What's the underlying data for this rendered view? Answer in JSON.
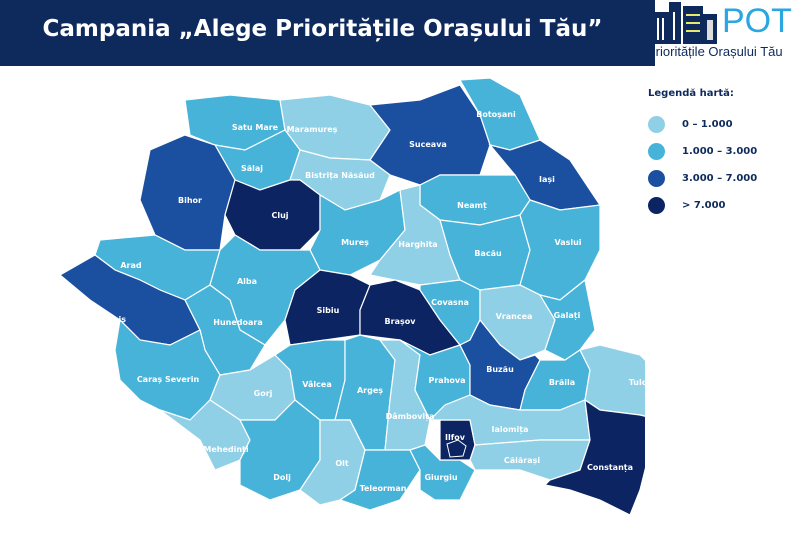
{
  "header": {
    "title": "Campania „Alege Prioritățile Orașului Tău”"
  },
  "logo": {
    "text": "POT",
    "subtitle": "Prioritățile Orașului Tău"
  },
  "legend": {
    "title": "Legendă hartă:",
    "items": [
      {
        "label": "0 – 1.000",
        "color": "#8fd0e6"
      },
      {
        "label": "1.000 – 3.000",
        "color": "#48b3d9"
      },
      {
        "label": "3.000 – 7.000",
        "color": "#1b4f9f"
      },
      {
        "label": "> 7.000",
        "color": "#0c2461"
      }
    ]
  },
  "counties": [
    {
      "name": "Satu Mare",
      "cls": 1
    },
    {
      "name": "Maramureș",
      "cls": 0
    },
    {
      "name": "Botoșani",
      "cls": 1
    },
    {
      "name": "Suceava",
      "cls": 2
    },
    {
      "name": "Sălaj",
      "cls": 1
    },
    {
      "name": "Bistrița Năsăud",
      "cls": 0
    },
    {
      "name": "Iași",
      "cls": 2
    },
    {
      "name": "Bihor",
      "cls": 2
    },
    {
      "name": "Cluj",
      "cls": 3
    },
    {
      "name": "Neamț",
      "cls": 1
    },
    {
      "name": "Mureș",
      "cls": 1
    },
    {
      "name": "Harghita",
      "cls": 0
    },
    {
      "name": "Bacău",
      "cls": 1
    },
    {
      "name": "Vaslui",
      "cls": 1
    },
    {
      "name": "Arad",
      "cls": 1
    },
    {
      "name": "Alba",
      "cls": 1
    },
    {
      "name": "Timiș",
      "cls": 2
    },
    {
      "name": "Hunedoara",
      "cls": 1
    },
    {
      "name": "Sibiu",
      "cls": 3
    },
    {
      "name": "Brașov",
      "cls": 3
    },
    {
      "name": "Covasna",
      "cls": 1
    },
    {
      "name": "Vrancea",
      "cls": 0
    },
    {
      "name": "Galați",
      "cls": 1
    },
    {
      "name": "Caraș Severin",
      "cls": 1
    },
    {
      "name": "Gorj",
      "cls": 0
    },
    {
      "name": "Vâlcea",
      "cls": 1
    },
    {
      "name": "Argeș",
      "cls": 1
    },
    {
      "name": "Dâmbovița",
      "cls": 0
    },
    {
      "name": "Prahova",
      "cls": 1
    },
    {
      "name": "Buzău",
      "cls": 2
    },
    {
      "name": "Brăila",
      "cls": 1
    },
    {
      "name": "Tulcea",
      "cls": 0
    },
    {
      "name": "Mehedinți",
      "cls": 0
    },
    {
      "name": "Dolj",
      "cls": 1
    },
    {
      "name": "Olt",
      "cls": 0
    },
    {
      "name": "Teleorman",
      "cls": 1
    },
    {
      "name": "Giurgiu",
      "cls": 1
    },
    {
      "name": "Ilfov",
      "cls": 3
    },
    {
      "name": "Ialomița",
      "cls": 0
    },
    {
      "name": "Călărași",
      "cls": 0
    },
    {
      "name": "Constanța",
      "cls": 3
    }
  ]
}
